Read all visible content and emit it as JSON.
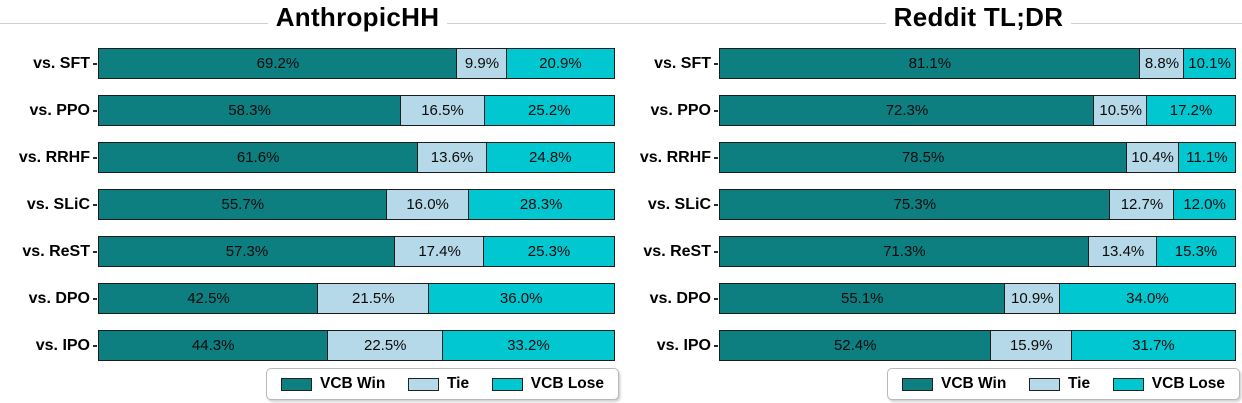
{
  "colors": {
    "win": "#0d7f81",
    "tie": "#b5d9e8",
    "lose": "#00c7d0",
    "bar_border": "#1c1c1c",
    "spine": "#cfcfcf"
  },
  "legend": {
    "items": [
      {
        "key": "win",
        "label": "VCB Win"
      },
      {
        "key": "tie",
        "label": "Tie"
      },
      {
        "key": "lose",
        "label": "VCB Lose"
      }
    ]
  },
  "chart_data": [
    {
      "type": "bar",
      "orientation": "horizontal",
      "stacked": true,
      "title": "AnthropicHH",
      "unit": "%",
      "xlim": [
        0,
        100
      ],
      "grid": false,
      "legend_position": "bottom-right",
      "categories": [
        "vs. SFT",
        "vs. PPO",
        "vs. RRHF",
        "vs. SLiC",
        "vs. ReST",
        "vs. DPO",
        "vs. IPO"
      ],
      "series": [
        {
          "name": "VCB Win",
          "key": "win",
          "values": [
            69.2,
            58.3,
            61.6,
            55.7,
            57.3,
            42.5,
            44.3
          ]
        },
        {
          "name": "Tie",
          "key": "tie",
          "values": [
            9.9,
            16.5,
            13.6,
            16.0,
            17.4,
            21.5,
            22.5
          ]
        },
        {
          "name": "VCB Lose",
          "key": "lose",
          "values": [
            20.9,
            25.2,
            24.8,
            28.3,
            25.3,
            36.0,
            33.2
          ]
        }
      ]
    },
    {
      "type": "bar",
      "orientation": "horizontal",
      "stacked": true,
      "title": "Reddit TL;DR",
      "unit": "%",
      "xlim": [
        0,
        100
      ],
      "grid": false,
      "legend_position": "bottom-right",
      "categories": [
        "vs. SFT",
        "vs. PPO",
        "vs. RRHF",
        "vs. SLiC",
        "vs. ReST",
        "vs. DPO",
        "vs. IPO"
      ],
      "series": [
        {
          "name": "VCB Win",
          "key": "win",
          "values": [
            81.1,
            72.3,
            78.5,
            75.3,
            71.3,
            55.1,
            52.4
          ]
        },
        {
          "name": "Tie",
          "key": "tie",
          "values": [
            8.8,
            10.5,
            10.4,
            12.7,
            13.4,
            10.9,
            15.9
          ]
        },
        {
          "name": "VCB Lose",
          "key": "lose",
          "values": [
            10.1,
            17.2,
            11.1,
            12.0,
            15.3,
            34.0,
            31.7
          ]
        }
      ]
    }
  ]
}
